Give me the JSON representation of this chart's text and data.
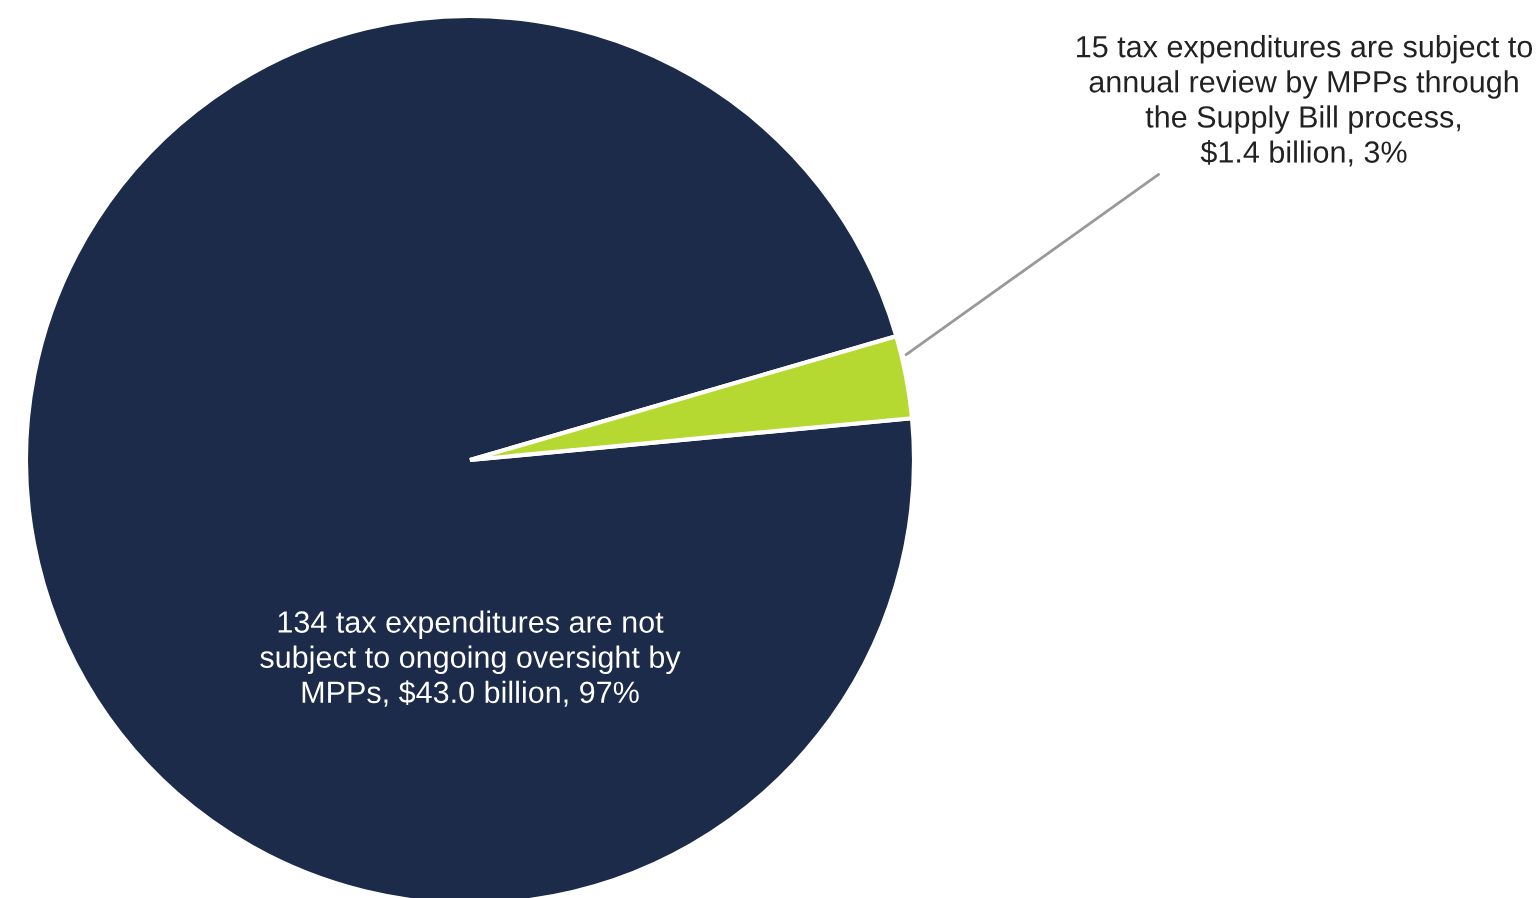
{
  "chart_data": {
    "type": "pie",
    "categories": [
      "134 tax expenditures are not\nsubject to ongoing oversight by\nMPPs, $43.0 billion, 97%",
      "15 tax expenditures are subject to\nannual review by MPPs through\nthe Supply Bill process,\n$1.4 billion, 3%"
    ],
    "values": [
      97,
      3
    ],
    "colors": [
      "#1c2b4a",
      "#b5d930"
    ]
  }
}
